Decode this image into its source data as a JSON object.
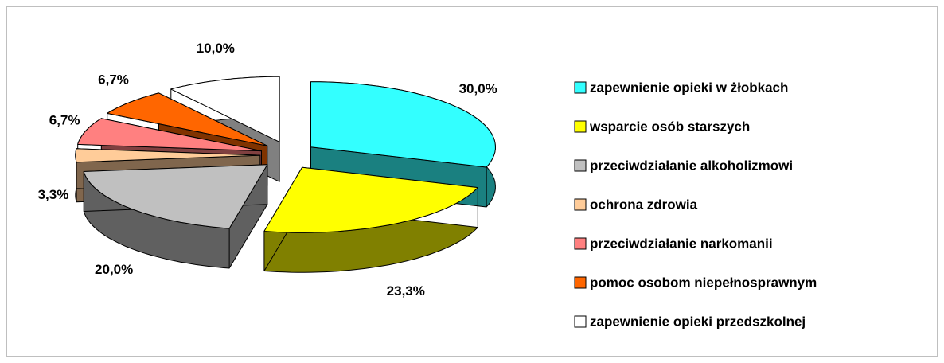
{
  "chart_data": {
    "type": "pie3d",
    "categories": [
      "zapewnienie opieki w żłobkach",
      "wsparcie osób starszych",
      "przeciwdziałanie alkoholizmowi",
      "ochrona zdrowia",
      "przeciwdziałanie narkomanii",
      "pomoc osobom niepełnosprawnym",
      "zapewnienie opieki przedszkolnej"
    ],
    "values": [
      30.0,
      23.3,
      20.0,
      3.3,
      6.7,
      6.7,
      10.0
    ],
    "value_labels": [
      "30,0%",
      "23,3%",
      "20,0%",
      "3,3%",
      "6,7%",
      "6,7%",
      "10,0%"
    ],
    "colors": [
      "#33ffff",
      "#ffff00",
      "#c0c0c0",
      "#ffcc99",
      "#ff8080",
      "#ff6600",
      "#ffffff"
    ],
    "legend": "right"
  }
}
